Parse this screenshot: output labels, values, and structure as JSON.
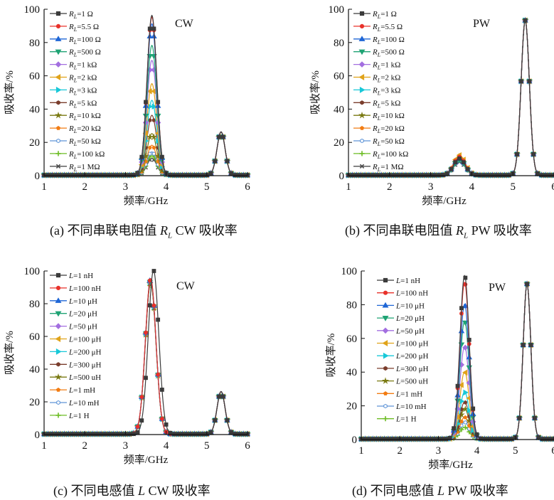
{
  "palette": [
    "#3b3b3b",
    "#e8312a",
    "#1f66d6",
    "#1fa374",
    "#a36fe0",
    "#e0a31a",
    "#18c8d8",
    "#7a3d2c",
    "#7a7a12",
    "#f27c12",
    "#5f95d8",
    "#6cbc23",
    "#4d4d4d"
  ],
  "markers": [
    "square",
    "circle",
    "triangle-up",
    "triangle-down",
    "diamond",
    "triangle-left",
    "triangle-right",
    "hexagon",
    "star",
    "pentagon",
    "hexagon-o",
    "plus",
    "x"
  ],
  "panels": [
    {
      "caption_pre": "(a) 不同串联电阻值 ",
      "caption_var": "R",
      "caption_sub": "L",
      "caption_post": " CW 吸收率",
      "chart_data": {
        "type": "line",
        "mode_label": "CW",
        "xlabel": "频率/GHz",
        "ylabel": "吸收率/%",
        "xlim": [
          1,
          6
        ],
        "ylim": [
          0,
          100
        ],
        "xticks": [
          1,
          2,
          3,
          4,
          5,
          6
        ],
        "yticks": [
          0,
          20,
          40,
          60,
          80,
          100
        ],
        "legend_position": "top-left",
        "series": [
          {
            "var": "R",
            "sub": "L",
            "name": "=1 Ω",
            "peak1": 96
          },
          {
            "var": "R",
            "sub": "L",
            "name": "=5.5 Ω",
            "peak1": 95
          },
          {
            "var": "R",
            "sub": "L",
            "name": "=100 Ω",
            "peak1": 91
          },
          {
            "var": "R",
            "sub": "L",
            "name": "=500 Ω",
            "peak1": 78
          },
          {
            "var": "R",
            "sub": "L",
            "name": "=1 kΩ",
            "peak1": 69
          },
          {
            "var": "R",
            "sub": "L",
            "name": "=2 kΩ",
            "peak1": 55
          },
          {
            "var": "R",
            "sub": "L",
            "name": "=3 kΩ",
            "peak1": 45
          },
          {
            "var": "R",
            "sub": "L",
            "name": "=5 kΩ",
            "peak1": 36
          },
          {
            "var": "R",
            "sub": "L",
            "name": "=10 kΩ",
            "peak1": 25
          },
          {
            "var": "R",
            "sub": "L",
            "name": "=20 kΩ",
            "peak1": 18
          },
          {
            "var": "R",
            "sub": "L",
            "name": "=50 kΩ",
            "peak1": 14
          },
          {
            "var": "R",
            "sub": "L",
            "name": "=100 kΩ",
            "peak1": 12
          },
          {
            "var": "R",
            "sub": "L",
            "name": "=1 MΩ",
            "peak1": 10
          }
        ],
        "peak1_center": 3.65,
        "peak1_width": 0.12,
        "peak2_center": 5.35,
        "peak2_width": 0.1,
        "peak2_height": 26
      }
    },
    {
      "caption_pre": "(b) 不同串联电阻值 ",
      "caption_var": "R",
      "caption_sub": "L",
      "caption_post": " PW 吸收率",
      "chart_data": {
        "type": "line",
        "mode_label": "PW",
        "xlabel": "频率/GHz",
        "ylabel": "吸收率/%",
        "xlim": [
          1,
          6
        ],
        "ylim": [
          0,
          100
        ],
        "xticks": [
          1,
          2,
          3,
          4,
          5,
          6
        ],
        "yticks": [
          0,
          20,
          40,
          60,
          80,
          100
        ],
        "legend_position": "top-left",
        "series": [
          {
            "var": "R",
            "sub": "L",
            "name": "=1 Ω",
            "peak1": 10
          },
          {
            "var": "R",
            "sub": "L",
            "name": "=5.5 Ω",
            "peak1": 11
          },
          {
            "var": "R",
            "sub": "L",
            "name": "=100 Ω",
            "peak1": 10
          },
          {
            "var": "R",
            "sub": "L",
            "name": "=500 Ω",
            "peak1": 9
          },
          {
            "var": "R",
            "sub": "L",
            "name": "=1 kΩ",
            "peak1": 9
          },
          {
            "var": "R",
            "sub": "L",
            "name": "=2 kΩ",
            "peak1": 12
          },
          {
            "var": "R",
            "sub": "L",
            "name": "=3 kΩ",
            "peak1": 10
          },
          {
            "var": "R",
            "sub": "L",
            "name": "=5 kΩ",
            "peak1": 11
          },
          {
            "var": "R",
            "sub": "L",
            "name": "=10 kΩ",
            "peak1": 10
          },
          {
            "var": "R",
            "sub": "L",
            "name": "=20 kΩ",
            "peak1": 12
          },
          {
            "var": "R",
            "sub": "L",
            "name": "=50 kΩ",
            "peak1": 11
          },
          {
            "var": "R",
            "sub": "L",
            "name": "=100 kΩ",
            "peak1": 9
          },
          {
            "var": "R",
            "sub": "L",
            "name": "=1 MΩ",
            "peak1": 8
          }
        ],
        "peak1_center": 3.7,
        "peak1_width": 0.14,
        "peak2_center": 5.3,
        "peak2_width": 0.1,
        "peak2_height": 93
      }
    },
    {
      "caption_pre": "(c) 不同电感值 ",
      "caption_var": "L",
      "caption_sub": "",
      "caption_post": " CW 吸收率",
      "chart_data": {
        "type": "line",
        "mode_label": "CW",
        "xlabel": "频率/GHz",
        "ylabel": "吸收率/%",
        "xlim": [
          1,
          6
        ],
        "ylim": [
          0,
          100
        ],
        "xticks": [
          1,
          2,
          3,
          4,
          5,
          6
        ],
        "yticks": [
          0,
          20,
          40,
          60,
          80,
          100
        ],
        "legend_position": "top-left",
        "series": [
          {
            "var": "L",
            "sub": "",
            "name": "=1 nH",
            "peak1": 100,
            "shift": 0.07
          },
          {
            "var": "L",
            "sub": "",
            "name": "=100 nH",
            "peak1": 95
          },
          {
            "var": "L",
            "sub": "",
            "name": "=10 μH",
            "peak1": 95
          },
          {
            "var": "L",
            "sub": "",
            "name": "=20 μH",
            "peak1": 94
          },
          {
            "var": "L",
            "sub": "",
            "name": "=50 μH",
            "peak1": 94
          },
          {
            "var": "L",
            "sub": "",
            "name": "=100 μH",
            "peak1": 94
          },
          {
            "var": "L",
            "sub": "",
            "name": "=200 μH",
            "peak1": 94
          },
          {
            "var": "L",
            "sub": "",
            "name": "=300 μH",
            "peak1": 93
          },
          {
            "var": "L",
            "sub": "",
            "name": "=500 uH",
            "peak1": 93
          },
          {
            "var": "L",
            "sub": "",
            "name": "=1 mH",
            "peak1": 93
          },
          {
            "var": "L",
            "sub": "",
            "name": "=10 mH",
            "peak1": 93
          },
          {
            "var": "L",
            "sub": "",
            "name": "=1 H",
            "peak1": 92
          }
        ],
        "peak1_center": 3.62,
        "peak1_width": 0.13,
        "peak2_center": 5.35,
        "peak2_width": 0.1,
        "peak2_height": 26
      }
    },
    {
      "caption_pre": "(d) 不同电感值 ",
      "caption_var": "L",
      "caption_sub": "",
      "caption_post": " PW 吸收率",
      "chart_data": {
        "type": "line",
        "mode_label": "PW",
        "xlabel": "频率/GHz",
        "ylabel": "吸收率/%",
        "xlim": [
          1,
          6
        ],
        "ylim": [
          0,
          100
        ],
        "xticks": [
          1,
          2,
          3,
          4,
          5,
          6
        ],
        "yticks": [
          0,
          20,
          40,
          60,
          80,
          100
        ],
        "legend_position": "top-left",
        "series": [
          {
            "var": "L",
            "sub": "",
            "name": "=1 nH",
            "peak1": 97
          },
          {
            "var": "L",
            "sub": "",
            "name": "=100 nH",
            "peak1": 93
          },
          {
            "var": "L",
            "sub": "",
            "name": "=10 μH",
            "peak1": 80
          },
          {
            "var": "L",
            "sub": "",
            "name": "=20 μH",
            "peak1": 70
          },
          {
            "var": "L",
            "sub": "",
            "name": "=50 μH",
            "peak1": 55
          },
          {
            "var": "L",
            "sub": "",
            "name": "=100 μH",
            "peak1": 40
          },
          {
            "var": "L",
            "sub": "",
            "name": "=200 μH",
            "peak1": 28
          },
          {
            "var": "L",
            "sub": "",
            "name": "=300 μH",
            "peak1": 22
          },
          {
            "var": "L",
            "sub": "",
            "name": "=500 uH",
            "peak1": 18
          },
          {
            "var": "L",
            "sub": "",
            "name": "=1 mH",
            "peak1": 13
          },
          {
            "var": "L",
            "sub": "",
            "name": "=10 mH",
            "peak1": 10
          },
          {
            "var": "L",
            "sub": "",
            "name": "=1 H",
            "peak1": 7
          }
        ],
        "peak1_center": 3.68,
        "peak1_width": 0.12,
        "peak2_center": 5.3,
        "peak2_width": 0.1,
        "peak2_height": 92
      }
    }
  ]
}
